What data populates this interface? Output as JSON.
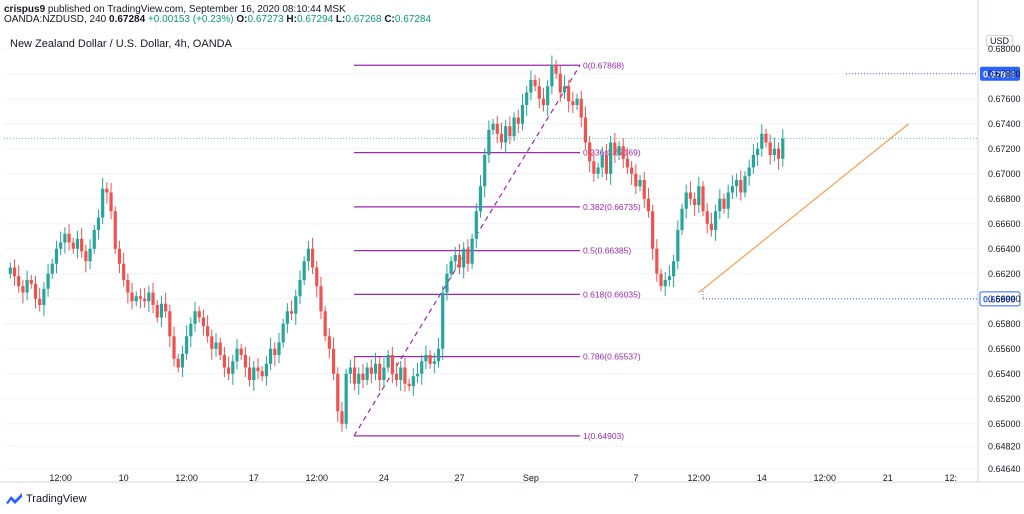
{
  "header": {
    "author": "crispus9",
    "published": " published on TradingView.com, September 16, 2020 08:10:44 MSK",
    "symbol": "OANDA:NZDUSD, 240",
    "last": "0.67284",
    "change": "+0.00153 (+0.23%)",
    "o_label": "O:",
    "o": "0.67273",
    "h_label": "H:",
    "h": "0.67294",
    "l_label": "L:",
    "l": "0.67268",
    "c_label": "C:",
    "c": "0.67284"
  },
  "footer": {
    "brand": "TradingView"
  },
  "colors": {
    "up": "#26a69a",
    "down": "#ef5350",
    "fib": "#9c27b0",
    "trend": "#f7a35c",
    "price_tag": "#2962ff"
  },
  "chart_data": {
    "type": "candlestick",
    "title": "New Zealand Dollar / U.S. Dollar, 4h, OANDA",
    "currency": "USD",
    "ylim": [
      0.6463,
      0.6815
    ],
    "y_ticks": [
      "0.68000",
      "0.67800",
      "0.67600",
      "0.67400",
      "0.67200",
      "0.67000",
      "0.66800",
      "0.66600",
      "0.66400",
      "0.66200",
      "0.66000",
      "0.65800",
      "0.65600",
      "0.65400",
      "0.65200",
      "0.65000",
      "0.64820",
      "0.64640"
    ],
    "x_ticks": [
      {
        "label": "12:00",
        "i": 13
      },
      {
        "label": "10",
        "i": 28
      },
      {
        "label": "12:00",
        "i": 43
      },
      {
        "label": "17",
        "i": 59
      },
      {
        "label": "12:00",
        "i": 74
      },
      {
        "label": "24",
        "i": 90
      },
      {
        "label": "27",
        "i": 108
      },
      {
        "label": "Sep",
        "i": 125
      },
      {
        "label": "7",
        "i": 150
      },
      {
        "label": "12:00",
        "i": 165
      },
      {
        "label": "14",
        "i": 180
      },
      {
        "label": "12:00",
        "i": 195
      },
      {
        "label": "21",
        "i": 210
      },
      {
        "label": "12:",
        "i": 225
      }
    ],
    "candles_close": [
      0.6625,
      0.6618,
      0.661,
      0.6605,
      0.6615,
      0.6612,
      0.66,
      0.6595,
      0.6608,
      0.662,
      0.6628,
      0.664,
      0.6645,
      0.6652,
      0.6645,
      0.664,
      0.6648,
      0.6638,
      0.663,
      0.664,
      0.6655,
      0.6665,
      0.6688,
      0.6685,
      0.667,
      0.664,
      0.6628,
      0.6615,
      0.6605,
      0.6598,
      0.6602,
      0.66,
      0.6598,
      0.6605,
      0.6595,
      0.6585,
      0.6596,
      0.659,
      0.657,
      0.6552,
      0.6545,
      0.6556,
      0.657,
      0.658,
      0.659,
      0.6585,
      0.6578,
      0.657,
      0.656,
      0.6565,
      0.6555,
      0.6545,
      0.654,
      0.655,
      0.656,
      0.6555,
      0.6545,
      0.6535,
      0.6545,
      0.6542,
      0.6538,
      0.6548,
      0.656,
      0.6555,
      0.6565,
      0.658,
      0.659,
      0.6588,
      0.6602,
      0.6615,
      0.663,
      0.664,
      0.6625,
      0.661,
      0.659,
      0.657,
      0.656,
      0.654,
      0.651,
      0.65,
      0.654,
      0.6545,
      0.6532,
      0.654,
      0.6535,
      0.6545,
      0.654,
      0.6548,
      0.6535,
      0.6545,
      0.6555,
      0.654,
      0.6535,
      0.6545,
      0.6532,
      0.653,
      0.6538,
      0.654,
      0.655,
      0.6555,
      0.6548,
      0.655,
      0.656,
      0.6605,
      0.662,
      0.663,
      0.6635,
      0.6625,
      0.664,
      0.6628,
      0.6648,
      0.667,
      0.669,
      0.6715,
      0.6735,
      0.674,
      0.6732,
      0.6725,
      0.6738,
      0.673,
      0.6745,
      0.674,
      0.6755,
      0.6765,
      0.6775,
      0.677,
      0.676,
      0.6755,
      0.677,
      0.6787,
      0.678,
      0.6765,
      0.677,
      0.6758,
      0.6755,
      0.676,
      0.6745,
      0.6725,
      0.671,
      0.67,
      0.6705,
      0.6715,
      0.67,
      0.6725,
      0.6715,
      0.6722,
      0.6712,
      0.6705,
      0.67,
      0.669,
      0.6695,
      0.668,
      0.667,
      0.664,
      0.662,
      0.661,
      0.6615,
      0.6618,
      0.663,
      0.6655,
      0.6672,
      0.6685,
      0.668,
      0.6675,
      0.669,
      0.667,
      0.666,
      0.6655,
      0.667,
      0.668,
      0.6672,
      0.6685,
      0.669,
      0.6695,
      0.6685,
      0.6698,
      0.6705,
      0.6715,
      0.672,
      0.6732,
      0.6725,
      0.6715,
      0.672,
      0.6712,
      0.6728
    ],
    "fib_levels": [
      {
        "ratio": "0",
        "value": 0.67868,
        "label": "0(0.67868)"
      },
      {
        "ratio": "0.236",
        "value": 0.67169,
        "label": "0.236(0.67169)"
      },
      {
        "ratio": "0.382",
        "value": 0.66735,
        "label": "0.382(0.66735)"
      },
      {
        "ratio": "0.5",
        "value": 0.66385,
        "label": "0.5(0.66385)"
      },
      {
        "ratio": "0.618",
        "value": 0.66035,
        "label": "0.618(0.66035)"
      },
      {
        "ratio": "0.786",
        "value": 0.65537,
        "label": "0.786(0.65537)"
      },
      {
        "ratio": "1",
        "value": 0.64903,
        "label": "1(0.64903)"
      }
    ],
    "price_tags": [
      {
        "value": 0.678,
        "label": "0.67800",
        "style": "blue"
      },
      {
        "value": 0.65999,
        "label": "0.65999",
        "style": "outline"
      }
    ],
    "trendline": {
      "from": [
        165,
        0.6605
      ],
      "to": [
        215,
        0.674
      ]
    }
  }
}
